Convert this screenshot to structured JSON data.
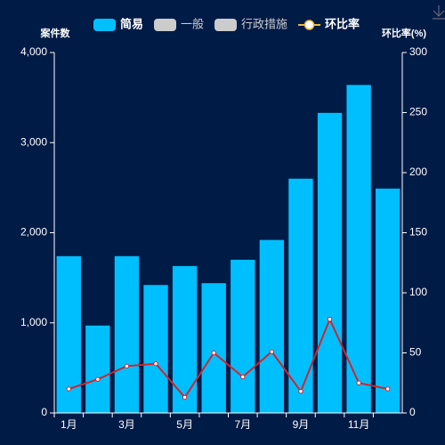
{
  "chart_data": {
    "type": "bar-line",
    "categories": [
      "1月",
      null,
      "3月",
      null,
      "5月",
      null,
      "7月",
      null,
      "9月",
      null,
      "11月",
      null
    ],
    "series": [
      {
        "name": "简易",
        "type": "bar",
        "color": "#00bfff",
        "values": [
          1740,
          970,
          1740,
          1420,
          1630,
          1440,
          1700,
          1920,
          2600,
          3330,
          3640,
          2490
        ]
      },
      {
        "name": "一般",
        "type": "bar",
        "color": "#cccccc",
        "hidden": true
      },
      {
        "name": "行政措施",
        "type": "bar",
        "color": "#cccccc",
        "hidden": true
      },
      {
        "name": "环比率",
        "type": "line",
        "axis": "y2",
        "color": "#d4242b",
        "values": [
          20,
          28,
          39,
          41,
          13,
          50,
          30,
          51,
          18,
          78,
          25,
          20
        ]
      }
    ],
    "ylabel": "案件数",
    "y2label": "环比率(%)",
    "ylim": [
      0,
      4000
    ],
    "yticks": [
      0,
      {
        "value": 1000,
        "label": "1,000"
      },
      {
        "value": 2000,
        "label": "2,000"
      },
      {
        "value": 3000,
        "label": "3,000"
      },
      {
        "value": 4000,
        "label": "4,000"
      }
    ],
    "y2lim": [
      0,
      300
    ],
    "y2ticks": [
      0,
      50,
      100,
      150,
      200,
      250,
      300
    ],
    "legend": "top"
  }
}
